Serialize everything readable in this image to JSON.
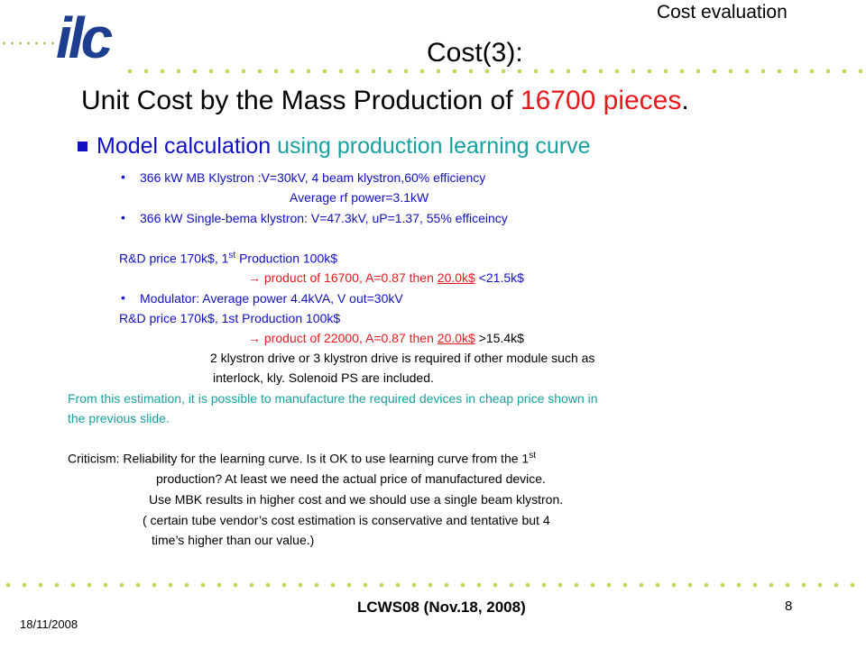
{
  "header": {
    "logo_text": "ilc",
    "section_title": "Cost evaluation",
    "title": "Cost(3):",
    "subtitle_main": "Unit Cost by the Mass Production of ",
    "subtitle_highlight": "16700 pieces",
    "subtitle_end": "."
  },
  "bullet": {
    "part1": "Model calculation ",
    "part2": "using production learning curve"
  },
  "lines": {
    "l1": "366 kW MB Klystron :V=30kV, 4 beam klystron,60% efficiency",
    "l2": "Average rf power=3.1kW",
    "l3": "366 kW  Single-bema klystron: V=47.3kV, uP=1.37, 55% efficeincy",
    "l4a": "R&D price 170k$, 1",
    "l4sup": "st",
    "l4b": "  Production 100k$",
    "l5arrow": "→",
    "l5a": " product of 16700, A=0.87 then ",
    "l5u": "20.0k$",
    "l5b": " <21.5k$",
    "l6": "Modulator: Average power 4.4kVA, V out=30kV",
    "l7": "R&D price 170k$, 1st  Production 100k$",
    "l8arrow": "→",
    "l8a": " product of 22000, A=0.87 then ",
    "l8u": "20.0k$",
    "l8b": " >15.4k$",
    "l9": "2 klystron drive or 3 klystron drive is required if  other module such as",
    "l10": "interlock, kly. Solenoid PS are included.",
    "l11": "From this estimation, it is possible to manufacture the required devices in cheap price shown in",
    "l12": "the previous slide.",
    "l13a": "Criticism:  Reliability for the learning curve. Is it OK to use learning curve from the 1",
    "l13sup": "st",
    "l14": "production? At least we need the actual price of manufactured device.",
    "l15": "Use MBK results in higher cost and we should use a single beam klystron.",
    "l16": "( certain tube vendor’s cost estimation is conservative and tentative but 4",
    "l17": "time’s higher than our value.)"
  },
  "footer": {
    "date": "18/11/2008",
    "conference": "LCWS08 (Nov.18,  2008)",
    "page": "8"
  },
  "colors": {
    "accent_red": "#e8191d",
    "teal": "#18a0a0",
    "logo_blue": "#1d3d8f",
    "dots": "#c9d45a"
  }
}
